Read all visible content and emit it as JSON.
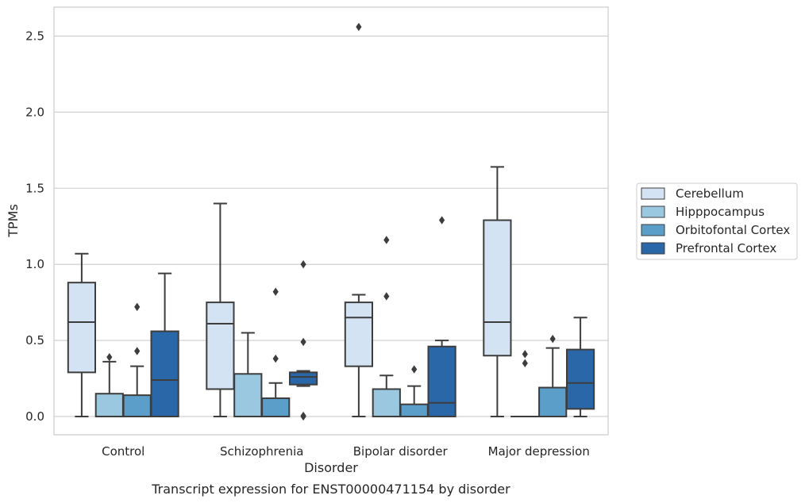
{
  "caption": "Transcript expression for ENST00000471154 by disorder",
  "chart_data": {
    "type": "boxplot",
    "xlabel": "Disorder",
    "ylabel": "TPMs",
    "ylim": [
      -0.12,
      2.69
    ],
    "yticks": [
      0.0,
      0.5,
      1.0,
      1.5,
      2.0,
      2.5
    ],
    "ytick_labels": [
      "0.0",
      "0.5",
      "1.0",
      "1.5",
      "2.0",
      "2.5"
    ],
    "grid": "horizontal",
    "legend_position": "right",
    "categories": [
      "Control",
      "Schizophrenia",
      "Bipolar disorder",
      "Major depression"
    ],
    "series": [
      {
        "name": "Cerebellum",
        "color": "#d3e3f3",
        "boxes": [
          {
            "whislo": 0.0,
            "q1": 0.29,
            "med": 0.62,
            "q3": 0.88,
            "whishi": 1.07,
            "fliers": []
          },
          {
            "whislo": 0.0,
            "q1": 0.18,
            "med": 0.61,
            "q3": 0.75,
            "whishi": 1.4,
            "fliers": []
          },
          {
            "whislo": 0.0,
            "q1": 0.33,
            "med": 0.65,
            "q3": 0.75,
            "whishi": 0.8,
            "fliers": [
              2.56
            ]
          },
          {
            "whislo": 0.0,
            "q1": 0.4,
            "med": 0.62,
            "q3": 1.29,
            "whishi": 1.64,
            "fliers": []
          }
        ]
      },
      {
        "name": "Hipppocampus",
        "color": "#9ac8e0",
        "boxes": [
          {
            "whislo": 0.0,
            "q1": 0.0,
            "med": 0.0,
            "q3": 0.15,
            "whishi": 0.36,
            "fliers": [
              0.39
            ]
          },
          {
            "whislo": 0.0,
            "q1": 0.0,
            "med": 0.0,
            "q3": 0.28,
            "whishi": 0.55,
            "fliers": []
          },
          {
            "whislo": 0.0,
            "q1": 0.0,
            "med": 0.0,
            "q3": 0.18,
            "whishi": 0.27,
            "fliers": [
              0.79,
              1.16
            ]
          },
          {
            "whislo": 0.0,
            "q1": 0.0,
            "med": 0.0,
            "q3": 0.0,
            "whishi": 0.0,
            "fliers": [
              0.35,
              0.41
            ]
          }
        ]
      },
      {
        "name": "Orbitofontal Cortex",
        "color": "#5a9ec9",
        "boxes": [
          {
            "whislo": 0.0,
            "q1": 0.0,
            "med": 0.0,
            "q3": 0.14,
            "whishi": 0.33,
            "fliers": [
              0.43,
              0.72
            ]
          },
          {
            "whislo": 0.0,
            "q1": 0.0,
            "med": 0.0,
            "q3": 0.12,
            "whishi": 0.22,
            "fliers": [
              0.38,
              0.82
            ]
          },
          {
            "whislo": 0.0,
            "q1": 0.0,
            "med": 0.0,
            "q3": 0.08,
            "whishi": 0.2,
            "fliers": [
              0.31
            ]
          },
          {
            "whislo": 0.0,
            "q1": 0.0,
            "med": 0.0,
            "q3": 0.19,
            "whishi": 0.45,
            "fliers": [
              0.51
            ]
          }
        ]
      },
      {
        "name": "Prefrontal Cortex",
        "color": "#2967a9",
        "boxes": [
          {
            "whislo": 0.0,
            "q1": 0.0,
            "med": 0.24,
            "q3": 0.56,
            "whishi": 0.94,
            "fliers": []
          },
          {
            "whislo": 0.2,
            "q1": 0.21,
            "med": 0.26,
            "q3": 0.29,
            "whishi": 0.3,
            "fliers": [
              0.0,
              0.005,
              0.49,
              1.0
            ]
          },
          {
            "whislo": 0.0,
            "q1": 0.0,
            "med": 0.09,
            "q3": 0.46,
            "whishi": 0.5,
            "fliers": [
              1.29
            ]
          },
          {
            "whislo": 0.0,
            "q1": 0.05,
            "med": 0.22,
            "q3": 0.44,
            "whishi": 0.65,
            "fliers": []
          }
        ]
      }
    ]
  }
}
